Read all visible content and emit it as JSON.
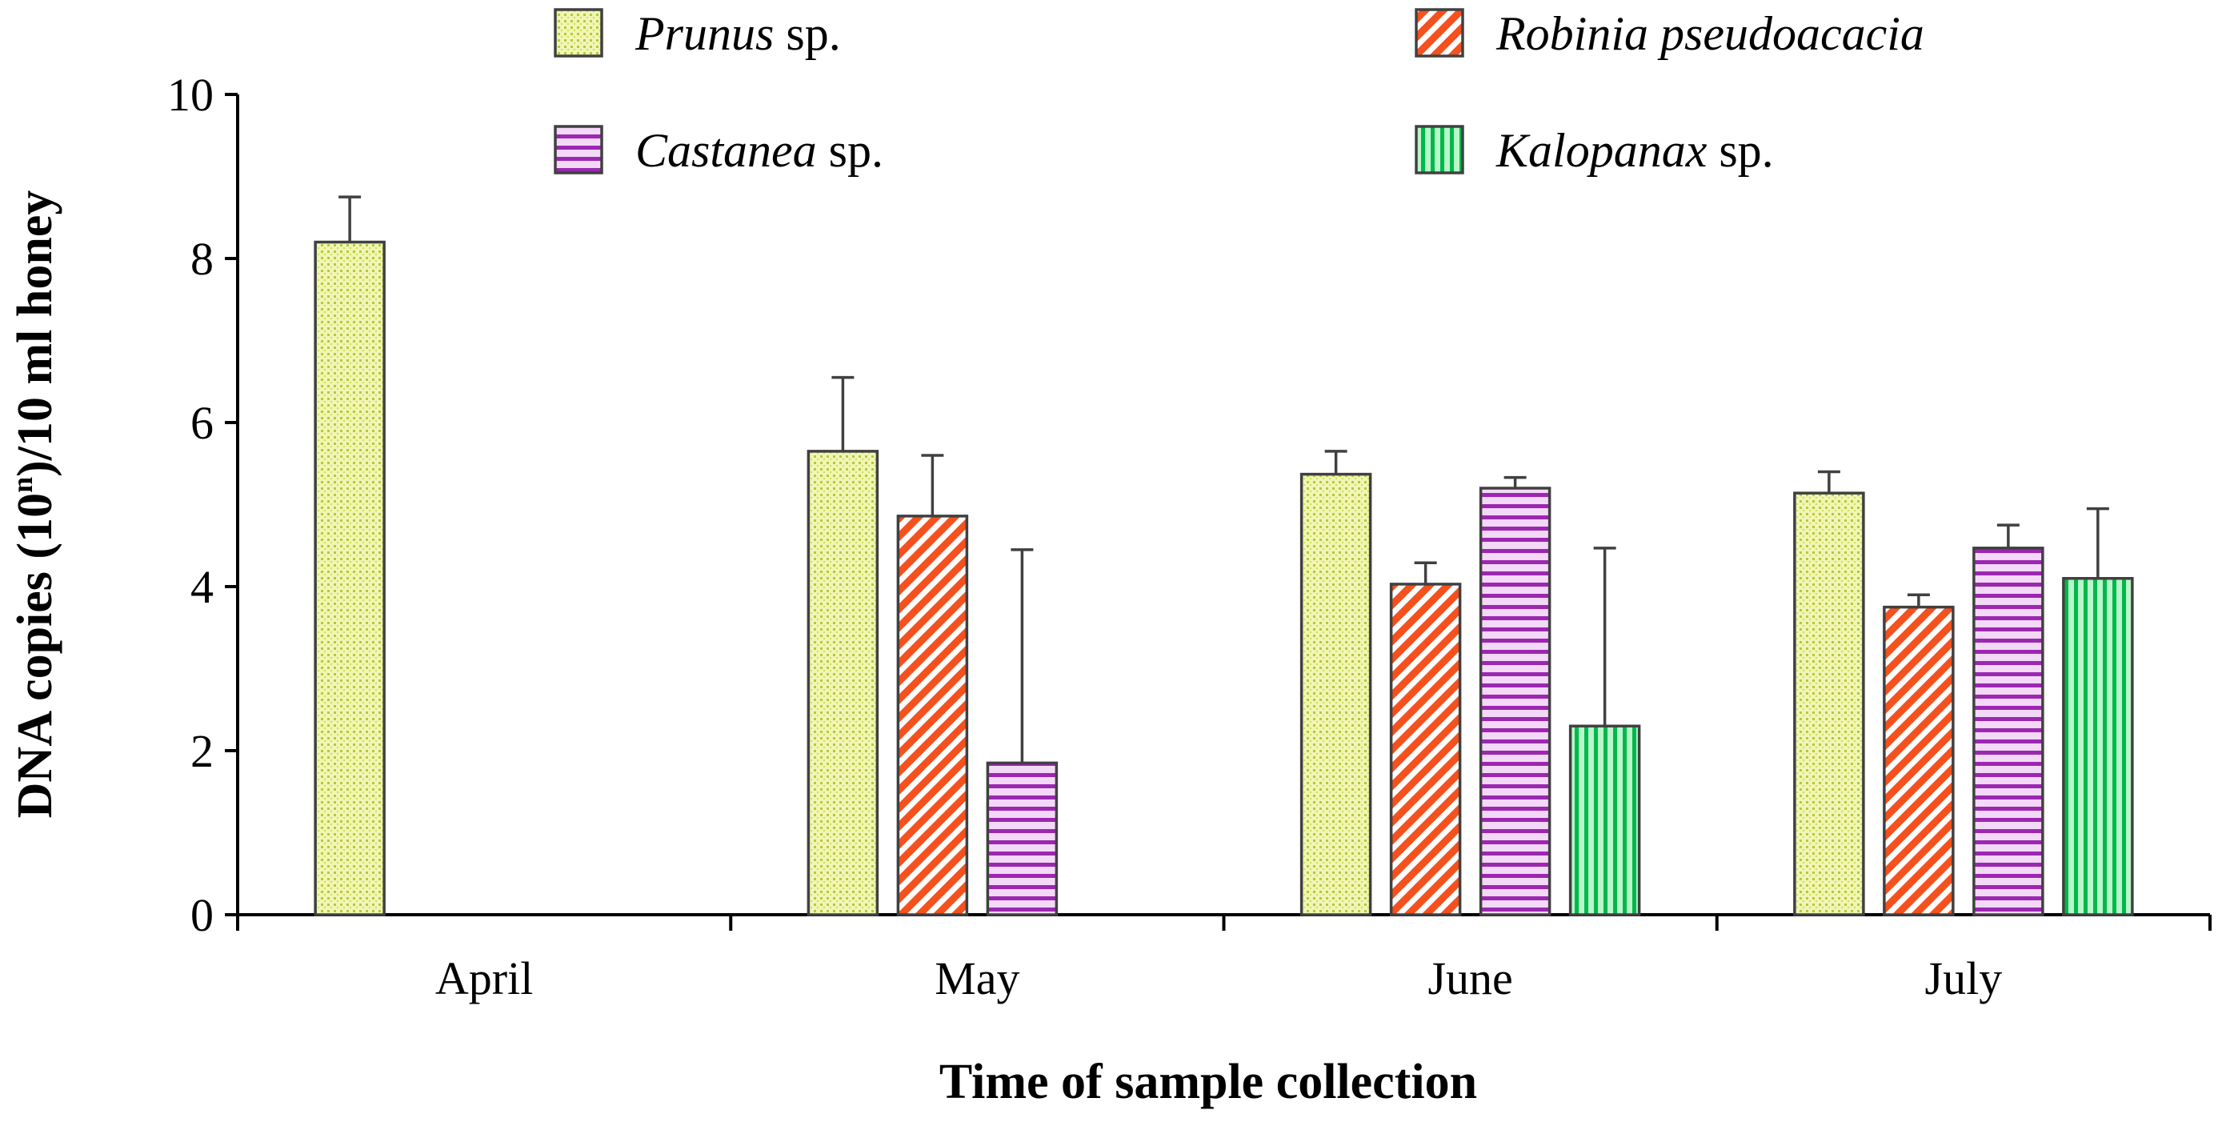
{
  "chart_data": {
    "type": "bar",
    "title": "",
    "xlabel": "Time of sample collection",
    "ylabel": "DNA copies (10ⁿ)/10 ml honey",
    "ylabel_parts": {
      "before": "DNA copies (10",
      "superscript": "n",
      "after": ")/10 ml honey"
    },
    "ylim": [
      0,
      10
    ],
    "yticks": [
      0,
      2,
      4,
      6,
      8,
      10
    ],
    "ytick_labels": [
      "0",
      "2",
      "4",
      "6",
      "8",
      "10"
    ],
    "categories": [
      "April",
      "May",
      "June",
      "July"
    ],
    "legend_position": "top",
    "series": [
      {
        "name": "Prunus sp.",
        "name_italic": "Prunus",
        "name_rest": " sp.",
        "fill": "#d4e157",
        "pattern": "dots",
        "values": [
          8.2,
          5.65,
          5.37,
          5.14
        ],
        "errors": [
          0.55,
          0.9,
          0.28,
          0.26
        ]
      },
      {
        "name": "Robinia pseudoacacia",
        "name_italic": "Robinia pseudoacacia",
        "name_rest": "",
        "fill": "#f4511e",
        "pattern": "diagonal",
        "values": [
          null,
          4.86,
          4.03,
          3.75
        ],
        "errors": [
          null,
          0.74,
          0.26,
          0.15
        ]
      },
      {
        "name": "Castanea sp.",
        "name_italic": "Castanea",
        "name_rest": " sp.",
        "fill": "#9c27b0",
        "pattern": "horizontal",
        "values": [
          null,
          1.85,
          5.2,
          4.47
        ],
        "errors": [
          null,
          2.6,
          0.13,
          0.28
        ]
      },
      {
        "name": "Kalopanax sp.",
        "name_italic": "Kalopanax",
        "name_rest": " sp.",
        "fill": "#00c853",
        "pattern": "vertical",
        "values": [
          null,
          null,
          2.3,
          4.1
        ],
        "errors": [
          null,
          null,
          2.17,
          0.85
        ]
      }
    ]
  }
}
